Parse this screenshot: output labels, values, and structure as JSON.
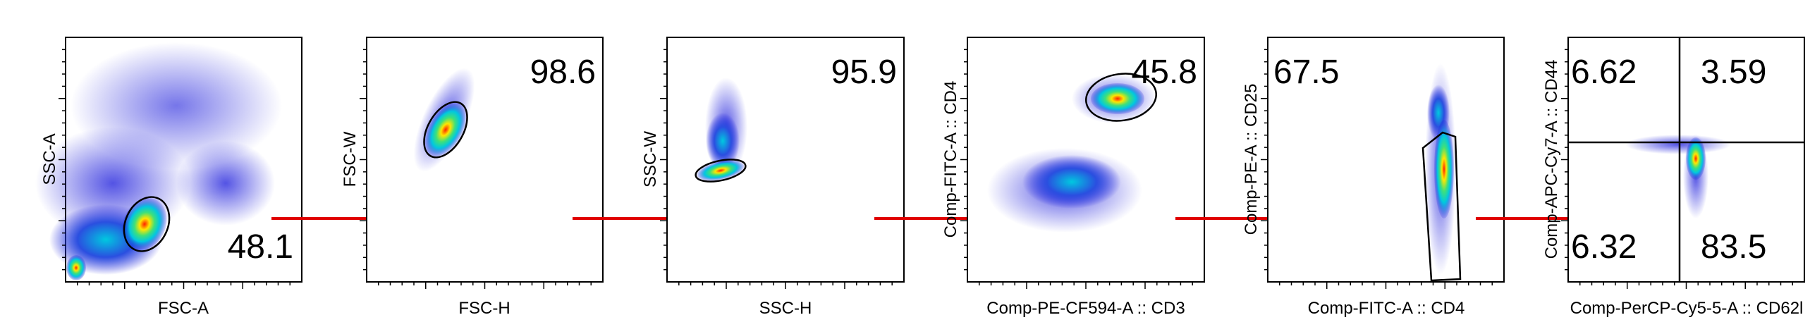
{
  "figure": {
    "panels": [
      {
        "xlabel": "FSC-A",
        "ylabel": "SSC-A",
        "gate_values": [
          "48.1"
        ]
      },
      {
        "xlabel": "FSC-H",
        "ylabel": "FSC-W",
        "gate_values": [
          "98.6"
        ]
      },
      {
        "xlabel": "SSC-H",
        "ylabel": "SSC-W",
        "gate_values": [
          "95.9"
        ]
      },
      {
        "xlabel": "Comp-PE-CF594-A :: CD3",
        "ylabel": "Comp-FITC-A :: CD4",
        "gate_values": [
          "45.8"
        ]
      },
      {
        "xlabel": "Comp-FITC-A :: CD4",
        "ylabel": "Comp-PE-A :: CD25",
        "gate_values": [
          "67.5"
        ]
      },
      {
        "xlabel": "Comp-PerCP-Cy5-5-A :: CD62l",
        "ylabel": "Comp-APC-Cy7-A :: CD44",
        "gate_values": [
          "6.62",
          "3.59",
          "6.32",
          "83.5"
        ]
      }
    ],
    "colors": {
      "arrow": "#e00000",
      "density_low": "#1a1adb",
      "density_mid": "#00d4c8",
      "density_high": "#ffe600",
      "density_peak": "#ff2000"
    }
  }
}
